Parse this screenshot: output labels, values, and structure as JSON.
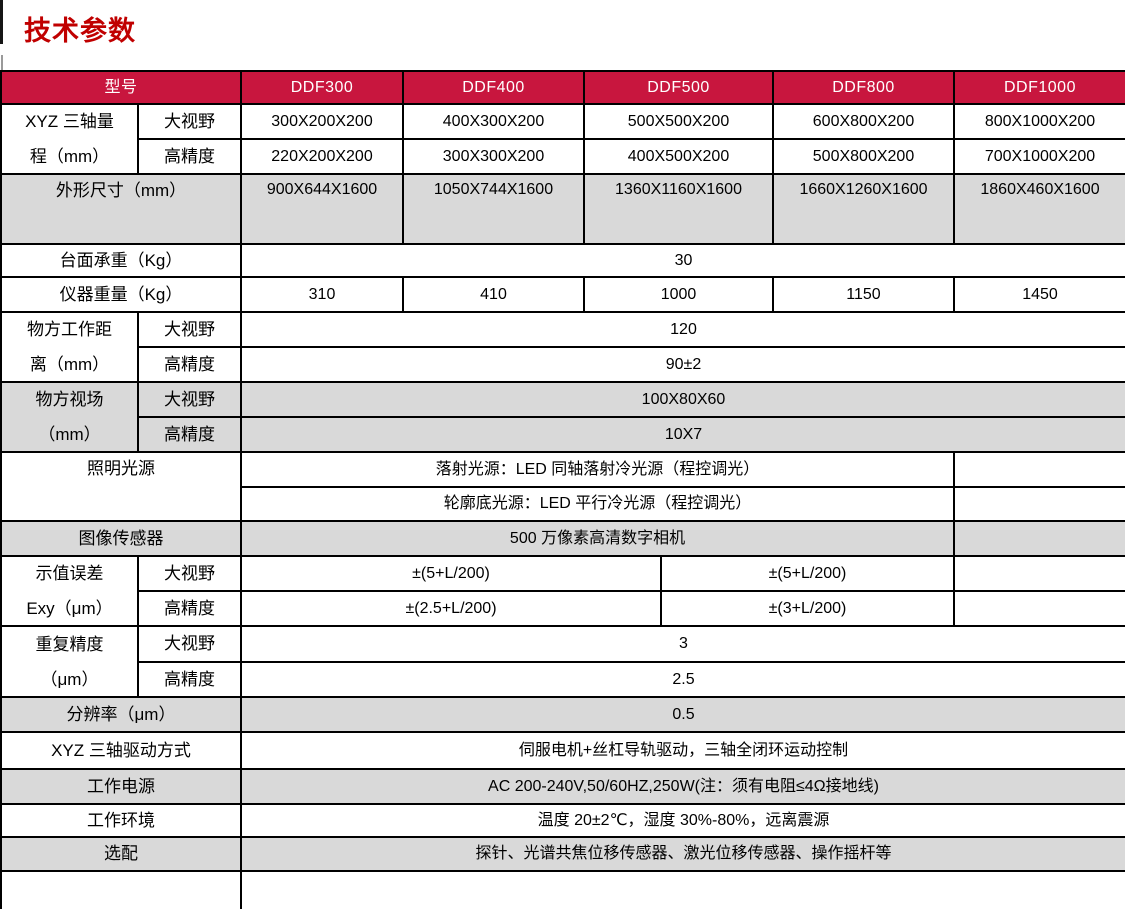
{
  "title": "技术参数",
  "colors": {
    "title_red": "#c00000",
    "header_bg": "#c8163e",
    "row_gray": "#d9d9d9",
    "border": "#000000"
  },
  "table": {
    "header": {
      "model_col": "型号",
      "models": [
        "DDF300",
        "DDF400",
        "DDF500",
        "DDF800",
        "DDF1000"
      ]
    },
    "xyz_range": {
      "label": "XYZ 三轴量\n程（mm）",
      "rows": [
        {
          "sub": "大视野",
          "values": [
            "300X200X200",
            "400X300X200",
            "500X500X200",
            "600X800X200",
            "800X1000X200"
          ]
        },
        {
          "sub": "高精度",
          "values": [
            "220X200X200",
            "300X300X200",
            "400X500X200",
            "500X800X200",
            "700X1000X200"
          ]
        }
      ]
    },
    "dimensions": {
      "label": "外形尺寸（mm）",
      "values": [
        "900X644X1600",
        "1050X744X1600",
        "1360X1160X1600",
        "1660X1260X1600",
        "1860X460X1600"
      ]
    },
    "bench_load": {
      "label": "台面承重（Kg）",
      "value": "30"
    },
    "instrument_weight": {
      "label": "仪器重量（Kg）",
      "values": [
        "310",
        "410",
        "1000",
        "1150",
        "1450"
      ]
    },
    "working_distance": {
      "label": "物方工作距\n离（mm）",
      "rows": [
        {
          "sub": "大视野",
          "value": "120"
        },
        {
          "sub": "高精度",
          "value": "90±2"
        }
      ]
    },
    "field_of_view": {
      "label": "物方视场\n（mm）",
      "rows": [
        {
          "sub": "大视野",
          "value": "100X80X60"
        },
        {
          "sub": "高精度",
          "value": "10X7"
        }
      ]
    },
    "illumination": {
      "label": "照明光源",
      "rows": [
        "落射光源：LED 同轴落射冷光源（程控调光）",
        "轮廓底光源：LED 平行冷光源（程控调光）"
      ]
    },
    "image_sensor": {
      "label": "图像传感器",
      "value": "500 万像素高清数字相机"
    },
    "indication_error": {
      "label": "示值误差\nExy（μm）",
      "rows": [
        {
          "sub": "大视野",
          "left": "±(5+L/200)",
          "right": "±(5+L/200)"
        },
        {
          "sub": "高精度",
          "left": "±(2.5+L/200)",
          "right": "±(3+L/200)"
        }
      ]
    },
    "repeatability": {
      "label": "重复精度\n（μm）",
      "rows": [
        {
          "sub": "大视野",
          "value": "3"
        },
        {
          "sub": "高精度",
          "value": "2.5"
        }
      ]
    },
    "resolution": {
      "label": "分辨率（μm）",
      "value": "0.5"
    },
    "drive_mode": {
      "label": "XYZ 三轴驱动方式",
      "value": "伺服电机+丝杠导轨驱动，三轴全闭环运动控制"
    },
    "power": {
      "label": "工作电源",
      "value": "AC 200-240V,50/60HZ,250W(注：须有电阻≤4Ω接地线)"
    },
    "environment": {
      "label": "工作环境",
      "value": "温度 20±2℃，湿度 30%-80%，远离震源"
    },
    "options": {
      "label": "选配",
      "value": "探针、光谱共焦位移传感器、激光位移传感器、操作摇杆等"
    }
  }
}
